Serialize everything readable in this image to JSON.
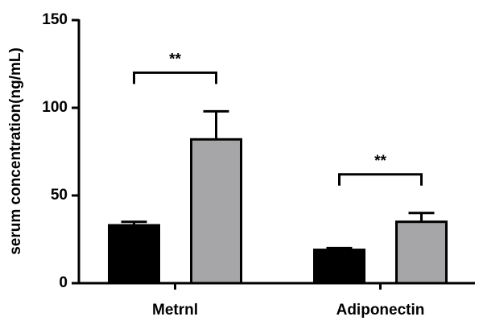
{
  "chart_data": {
    "type": "bar",
    "y_label": "serum concentration(ng/mL)",
    "categories": [
      "Metrnl",
      "Adiponectin"
    ],
    "series": [
      {
        "color": "#000000",
        "values": [
          33,
          19
        ],
        "errors": [
          2,
          1
        ]
      },
      {
        "color": "#a6a6a8",
        "values": [
          82,
          35
        ],
        "errors": [
          16,
          5
        ]
      }
    ],
    "annotations": [
      {
        "text": "**"
      },
      {
        "text": "**"
      }
    ],
    "ylim": [
      0,
      150
    ],
    "yticks": [
      0,
      50,
      100,
      150
    ]
  }
}
